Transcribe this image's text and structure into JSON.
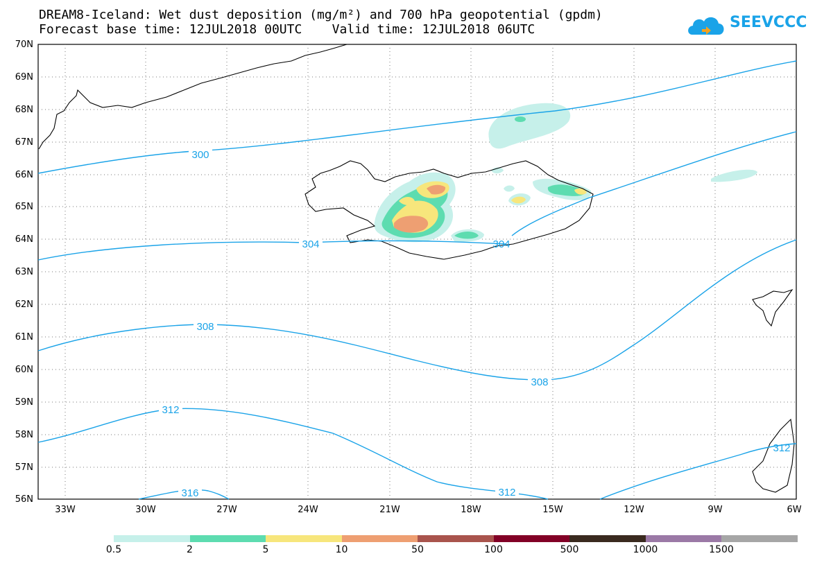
{
  "title": {
    "line1": "DREAM8-Iceland: Wet dust deposition (mg/m²) and 700 hPa geopotential (gpdm)",
    "line2": "Forecast base time: 12JUL2018 00UTC    Valid time: 12JUL2018 06UTC"
  },
  "logo": {
    "text": "SEEVCCC",
    "icon": "cloud-icon",
    "color": "#1aa3e8"
  },
  "map": {
    "lat_labels": [
      "70N",
      "69N",
      "68N",
      "67N",
      "66N",
      "65N",
      "64N",
      "63N",
      "62N",
      "61N",
      "60N",
      "59N",
      "58N",
      "57N",
      "56N"
    ],
    "lon_labels": [
      "33W",
      "30W",
      "27W",
      "24W",
      "21W",
      "18W",
      "15W",
      "12W",
      "9W",
      "6W"
    ],
    "contour_color": "#1aa3e8",
    "contour_labels": [
      "300",
      "304",
      "304",
      "308",
      "308",
      "312",
      "312",
      "312",
      "316"
    ]
  },
  "legend": {
    "colors": [
      "#c6f0ea",
      "#5ddcb0",
      "#f7e67c",
      "#ee9f72",
      "#a9544d",
      "#820026",
      "#3a2a1f",
      "#9b79a6",
      "#a6a6a6"
    ],
    "labels": [
      "0.5",
      "2",
      "5",
      "10",
      "50",
      "100",
      "500",
      "1000",
      "1500"
    ]
  }
}
